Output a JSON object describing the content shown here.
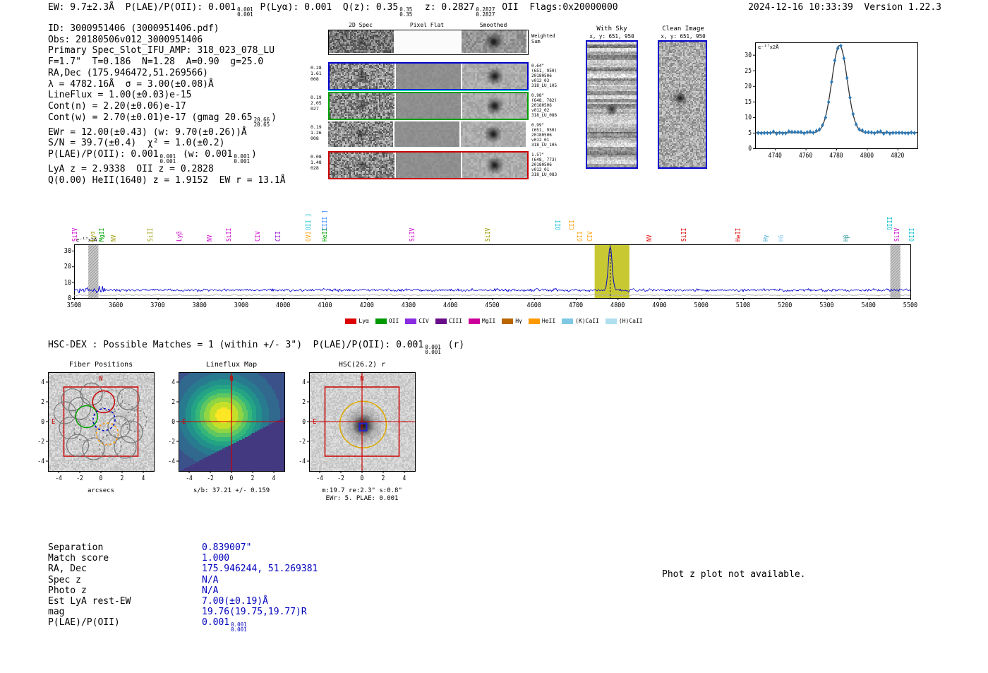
{
  "header": {
    "left_tokens": [
      "EW: 9.7±2.3Å  P(LAE)/P(OII): 0.001",
      {
        "frac": [
          "0.001",
          "0.001"
        ]
      },
      " P(Lyα): 0.001  Q(z): 0.35",
      {
        "frac": [
          "0.35",
          "0.35"
        ]
      },
      "  z: 0.2827",
      {
        "frac": [
          "0.2827",
          "0.2827"
        ]
      },
      " OII  Flags:0x20000000"
    ],
    "right": "2024-12-16 10:33:39  Version 1.22.3"
  },
  "info": {
    "lines": [
      [
        "ID: 3000951406 (3000951406.pdf)"
      ],
      [
        "Obs: 20180506v012_3000951406"
      ],
      [
        "Primary Spec_Slot_IFU_AMP: 318_023_078_LU"
      ],
      [
        "F=1.7\"  T=0.186  N=1.28  A=0.90  g=25.0"
      ],
      [
        "RA,Dec (175.946472,51.269566)"
      ],
      [
        "λ = 4782.16Å  σ = 3.00(±0.08)Å"
      ],
      [
        "LineFlux = 1.00(±0.03)e-15"
      ],
      [
        "Cont(n) = 2.20(±0.06)e-17"
      ],
      [
        "Cont(w) = 2.70(±0.01)e-17 (gmag 20.65",
        {
          "frac": [
            "20.66",
            "20.65"
          ]
        },
        ")"
      ],
      [
        "EWr = 12.00(±0.43) (w: 9.70(±0.26))Å"
      ],
      [
        "S/N = 39.7(±0.4)  χ² = 1.0(±0.2)"
      ],
      [
        "P(LAE)/P(OII): 0.001",
        {
          "frac": [
            "0.001",
            "0.001"
          ]
        },
        " (w: 0.001",
        {
          "frac": [
            "0.001",
            "0.001"
          ]
        },
        ")"
      ],
      [
        "LyA z = 2.9338  OII z = 0.2828"
      ],
      [
        "Q(0.00) HeII(1640) z = 1.9152  EW r = 13.1Å"
      ]
    ]
  },
  "spec2d": {
    "col_headers": [
      "2D Spec",
      "Pixel Flat",
      "Smoothed"
    ],
    "weighted_sum": [
      "Weighted",
      "Sum"
    ],
    "rows": [
      {
        "border": "#000000",
        "left": [],
        "right": []
      },
      {
        "border": "#0000cc",
        "left": [
          "0.28",
          "1.61",
          "008"
        ],
        "right": [
          "0.64\"",
          "(651, 950)",
          "20180506",
          "v012_03",
          "318_LU_105"
        ]
      },
      {
        "border": "#00a000",
        "left": [
          "0.19",
          "2.05",
          "027"
        ],
        "right": [
          "0.98\"",
          "(648, 782)",
          "20180506",
          "v012_02",
          "318_LU_086"
        ]
      },
      {
        "border": null,
        "left": [
          "0.19",
          "1.26",
          "008"
        ],
        "right": [
          "0.99\"",
          "(651, 950)",
          "20180506",
          "v012_01",
          "318_LU_105"
        ]
      },
      {
        "border": "#cc0000",
        "left": [
          "0.08",
          "1.48",
          "028"
        ],
        "right": [
          "1.57\"",
          "(648, 773)",
          "20180506",
          "v012_01",
          "318_LU_083"
        ]
      }
    ]
  },
  "withsky": {
    "title": "With Sky",
    "subtitle": "x, y: 651, 950"
  },
  "clean": {
    "title": "Clean Image",
    "subtitle": "x, y: 651, 950"
  },
  "hsc_line_tokens": [
    "HSC-DEX : Possible Matches = 1 (within +/- 3\")  P(LAE)/P(OII): 0.001",
    {
      "frac": [
        "0.001",
        "0.001"
      ]
    },
    " (r)"
  ],
  "panels": {
    "fiber": {
      "title": "Fiber Positions",
      "xlabel": "arcsecs",
      "ticks": [
        -4,
        -2,
        0,
        2,
        4
      ]
    },
    "lineflux": {
      "title": "Lineflux Map",
      "caption": "s/b: 37.21 +/- 0.159",
      "ticks": [
        -4,
        -2,
        0,
        2,
        4
      ]
    },
    "hsc": {
      "title": "HSC(26.2) r",
      "caption1": "m:19.7 re:2.3\" s:0.8\"",
      "caption2": "EWr: 5. PLAE: 0.001",
      "ticks": [
        -4,
        -2,
        0,
        2,
        4
      ]
    }
  },
  "match": {
    "rows": [
      {
        "label": "Separation",
        "value": [
          "0.839007\""
        ]
      },
      {
        "label": "Match score",
        "value": [
          "1.000"
        ]
      },
      {
        "label": "RA, Dec",
        "value": [
          "175.946244, 51.269381"
        ]
      },
      {
        "label": "Spec z",
        "value": [
          "N/A"
        ]
      },
      {
        "label": "Photo z",
        "value": [
          "N/A"
        ]
      },
      {
        "label": "Est LyA rest-EW",
        "value": [
          "7.00(±0.19)Å"
        ]
      },
      {
        "label": "mag",
        "value": [
          "19.76(19.75,19.77)R"
        ]
      },
      {
        "label": "P(LAE)/P(OII)",
        "value": [
          "0.001",
          {
            "frac": [
              "0.001",
              "0.001"
            ]
          }
        ]
      }
    ]
  },
  "photz_note": "Phot z plot not available.",
  "chart_data": [
    {
      "type": "line",
      "name": "line-fit-cutout",
      "ylabel_display": "e⁻¹⁷x2Å",
      "xlim": [
        4727,
        4833
      ],
      "ylim": [
        0,
        34
      ],
      "xticks": [
        4740,
        4760,
        4780,
        4800,
        4820
      ],
      "yticks": [
        0,
        5,
        10,
        15,
        20,
        25,
        30
      ],
      "baseline": 5.0,
      "gaussian": {
        "center": 4782.16,
        "sigma": 5.0,
        "amplitude": 28.0
      },
      "marker_color": "#2e7bb8",
      "fit_color": "#333333"
    },
    {
      "type": "line",
      "name": "full-spectrum",
      "ylabel_display": "e⁻¹⁷x2Å",
      "xlim": [
        3500,
        5500
      ],
      "ylim": [
        0,
        34
      ],
      "xticks": [
        3500,
        3600,
        3700,
        3800,
        3900,
        4000,
        4100,
        4200,
        4300,
        4400,
        4500,
        4600,
        4700,
        4800,
        4900,
        5000,
        5100,
        5200,
        5300,
        5400,
        5500
      ],
      "yticks": [
        0,
        10,
        20,
        30
      ],
      "baseline": 5.0,
      "noise_sigma": 1.05,
      "gaussian": {
        "center": 4782.16,
        "sigma": 4.5,
        "amplitude": 28.0
      },
      "line_color": "#0000cc",
      "dashed_line_x": 4782.16,
      "highlight_band": {
        "x0": 4745,
        "x1": 4828,
        "color": "#c8c832"
      },
      "hatch_bands": [
        {
          "x0": 3534,
          "x1": 3558
        },
        {
          "x0": 5452,
          "x1": 5476
        }
      ],
      "line_labels": [
        {
          "label": "SiIV",
          "wl": 3504,
          "color": "#cc00cc",
          "elevated": false
        },
        {
          "label": "Lyα",
          "wl": 3546,
          "color": "#999900",
          "elevated": false
        },
        {
          "label": "MgII",
          "wl": 3567,
          "color": "#00a000",
          "elevated": false
        },
        {
          "label": "NV",
          "wl": 3596,
          "color": "#999900",
          "elevated": false
        },
        {
          "label": "SiII",
          "wl": 3684,
          "color": "#999900",
          "elevated": false
        },
        {
          "label": "Lyβ",
          "wl": 3754,
          "color": "#cc00cc",
          "elevated": false
        },
        {
          "label": "NV",
          "wl": 3826,
          "color": "#cc00cc",
          "elevated": false
        },
        {
          "label": "SiII",
          "wl": 3872,
          "color": "#cc00cc",
          "elevated": false
        },
        {
          "label": "CIV",
          "wl": 3940,
          "color": "#cc00cc",
          "elevated": false
        },
        {
          "label": "CII",
          "wl": 3990,
          "color": "#8800cc",
          "elevated": false
        },
        {
          "label": "OVI",
          "wl": 4062,
          "color": "#ff9900",
          "elevated": false
        },
        {
          "label": "HeII",
          "wl": 4100,
          "color": "#00a000",
          "elevated": false
        },
        {
          "label": "OII ]",
          "wl": 4062,
          "color": "#00bbcc",
          "elevated": true
        },
        {
          "label": "CIII ]",
          "wl": 4100,
          "color": "#3388ff",
          "elevated": true
        },
        {
          "label": "SiIV",
          "wl": 4310,
          "color": "#cc00cc",
          "elevated": false
        },
        {
          "label": "SiIV",
          "wl": 4490,
          "color": "#999900",
          "elevated": false
        },
        {
          "label": "OII",
          "wl": 4660,
          "color": "#00bbcc",
          "elevated": true
        },
        {
          "label": "CII",
          "wl": 4692,
          "color": "#ff9900",
          "elevated": true
        },
        {
          "label": "OII",
          "wl": 4712,
          "color": "#ff9900",
          "elevated": false
        },
        {
          "label": "CIV",
          "wl": 4736,
          "color": "#ff9900",
          "elevated": false
        },
        {
          "label": "NV",
          "wl": 4878,
          "color": "#dd0000",
          "elevated": false
        },
        {
          "label": "SiII",
          "wl": 4960,
          "color": "#dd0000",
          "elevated": false
        },
        {
          "label": "HeII",
          "wl": 5090,
          "color": "#dd0000",
          "elevated": false
        },
        {
          "label": "Hγ",
          "wl": 5155,
          "color": "#44aacc",
          "elevated": false
        },
        {
          "label": "Hδ",
          "wl": 5192,
          "color": "#88ccee",
          "elevated": false
        },
        {
          "label": "Hβ",
          "wl": 5348,
          "color": "#339999",
          "elevated": false
        },
        {
          "label": "OIII",
          "wl": 5452,
          "color": "#00bbcc",
          "elevated": true
        },
        {
          "label": "SiIV",
          "wl": 5470,
          "color": "#cc00cc",
          "elevated": false
        },
        {
          "label": "OIII",
          "wl": 5505,
          "color": "#00bbcc",
          "elevated": false
        }
      ],
      "legend": [
        {
          "label": "Lyα",
          "color": "#dd0000"
        },
        {
          "label": "OII",
          "color": "#009900"
        },
        {
          "label": "CIV",
          "color": "#8a2be2"
        },
        {
          "label": "CIII",
          "color": "#6a0d8a"
        },
        {
          "label": "MgII",
          "color": "#cc0099"
        },
        {
          "label": "Hγ",
          "color": "#bb6600"
        },
        {
          "label": "HeII",
          "color": "#ff9900"
        },
        {
          "label": "(K)CaII",
          "color": "#7ec8e3"
        },
        {
          "label": "(H)CaII",
          "color": "#b0dff0"
        }
      ]
    }
  ]
}
